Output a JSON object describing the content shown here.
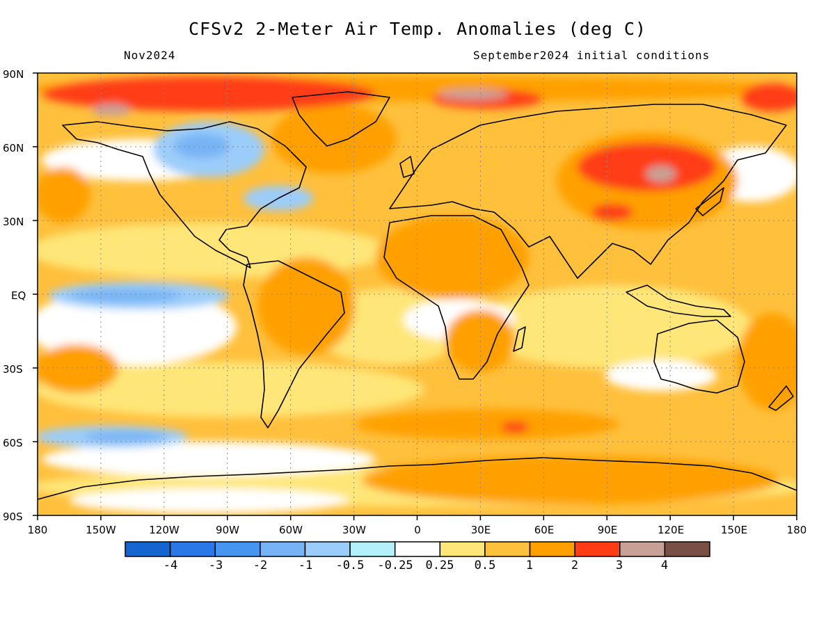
{
  "header": {
    "title": "CFSv2 2-Meter Air Temp. Anomalies (deg C)",
    "valid_month": "Nov2024",
    "init_conditions": "September2024 initial conditions"
  },
  "axes": {
    "lat_labels": [
      "90N",
      "60N",
      "30N",
      "EQ",
      "30S",
      "60S",
      "90S"
    ],
    "lon_labels": [
      "180",
      "150W",
      "120W",
      "90W",
      "60W",
      "30W",
      "0",
      "30E",
      "60E",
      "90E",
      "120E",
      "150E",
      "180"
    ]
  },
  "colorbar": {
    "colors": [
      "#1565d0",
      "#2a78e8",
      "#4696f0",
      "#78b4f5",
      "#9ccdfa",
      "#b4f0fa",
      "#ffffff",
      "#ffe678",
      "#ffc03c",
      "#ffa000",
      "#ff3c14",
      "#c8a096",
      "#785046"
    ],
    "labels": [
      "-4",
      "-3",
      "-2",
      "-1",
      "-0.5",
      "-0.25",
      "0.25",
      "0.5",
      "1",
      "2",
      "3",
      "4"
    ]
  }
}
